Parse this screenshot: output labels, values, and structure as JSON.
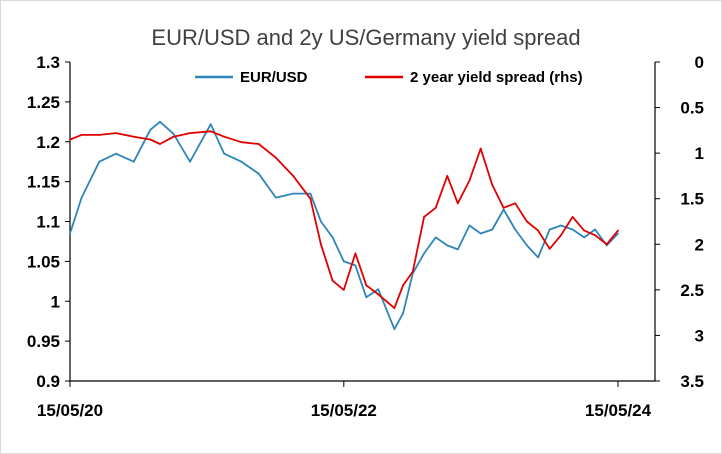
{
  "chart_data": {
    "type": "line",
    "title": "EUR/USD and 2y US/Germany yield spread",
    "xlabel": "",
    "ylabel": "",
    "x_tick_labels": [
      "15/05/20",
      "15/05/22",
      "15/05/24"
    ],
    "x_range": [
      "2020-05-15",
      "2024-05-15"
    ],
    "ylim": [
      0.9,
      1.3
    ],
    "y_ticks": [
      "1.3",
      "1.25",
      "1.2",
      "1.15",
      "1.1",
      "1.05",
      "1",
      "0.95",
      "0.9"
    ],
    "y2lim": [
      0,
      3.5
    ],
    "y2_inverted": true,
    "y2_ticks": [
      "0",
      "0.5",
      "1",
      "1.5",
      "2",
      "2.5",
      "3",
      "3.5"
    ],
    "grid": false,
    "legend_position": "top",
    "series": [
      {
        "name": "EUR/USD",
        "axis": "left",
        "color": "#2e86b8",
        "x": [
          "2020-05-15",
          "2020-06-15",
          "2020-08-01",
          "2020-09-15",
          "2020-11-01",
          "2020-12-15",
          "2021-01-10",
          "2021-02-15",
          "2021-03-31",
          "2021-05-25",
          "2021-06-30",
          "2021-08-15",
          "2021-09-30",
          "2021-11-15",
          "2021-12-31",
          "2022-02-15",
          "2022-03-15",
          "2022-04-15",
          "2022-05-15",
          "2022-06-15",
          "2022-07-14",
          "2022-08-15",
          "2022-09-27",
          "2022-10-20",
          "2022-11-15",
          "2022-12-15",
          "2023-01-15",
          "2023-02-15",
          "2023-03-15",
          "2023-04-15",
          "2023-05-15",
          "2023-06-15",
          "2023-07-15",
          "2023-08-15",
          "2023-09-15",
          "2023-10-15",
          "2023-11-15",
          "2023-12-15",
          "2024-01-15",
          "2024-02-15",
          "2024-03-15",
          "2024-04-15",
          "2024-05-15"
        ],
        "values": [
          1.085,
          1.13,
          1.175,
          1.185,
          1.175,
          1.215,
          1.225,
          1.21,
          1.175,
          1.222,
          1.185,
          1.175,
          1.16,
          1.13,
          1.135,
          1.135,
          1.1,
          1.08,
          1.05,
          1.045,
          1.005,
          1.015,
          0.965,
          0.985,
          1.035,
          1.06,
          1.08,
          1.07,
          1.065,
          1.095,
          1.085,
          1.09,
          1.115,
          1.09,
          1.07,
          1.055,
          1.09,
          1.095,
          1.09,
          1.08,
          1.09,
          1.07,
          1.085
        ]
      },
      {
        "name": "2 year yield spread (rhs)",
        "axis": "right",
        "color": "#e00000",
        "x": [
          "2020-05-15",
          "2020-06-15",
          "2020-08-01",
          "2020-09-15",
          "2020-11-01",
          "2020-12-15",
          "2021-01-10",
          "2021-02-15",
          "2021-03-31",
          "2021-05-25",
          "2021-06-30",
          "2021-08-15",
          "2021-09-30",
          "2021-11-15",
          "2021-12-31",
          "2022-02-15",
          "2022-03-15",
          "2022-04-15",
          "2022-05-15",
          "2022-06-15",
          "2022-07-14",
          "2022-08-15",
          "2022-09-27",
          "2022-10-20",
          "2022-11-15",
          "2022-12-15",
          "2023-01-15",
          "2023-02-15",
          "2023-03-15",
          "2023-04-15",
          "2023-05-15",
          "2023-06-15",
          "2023-07-15",
          "2023-08-15",
          "2023-09-15",
          "2023-10-15",
          "2023-11-15",
          "2023-12-15",
          "2024-01-15",
          "2024-02-15",
          "2024-03-15",
          "2024-04-15",
          "2024-05-15"
        ],
        "values": [
          0.85,
          0.8,
          0.8,
          0.78,
          0.82,
          0.85,
          0.9,
          0.82,
          0.78,
          0.76,
          0.82,
          0.88,
          0.9,
          1.05,
          1.25,
          1.5,
          2.0,
          2.4,
          2.5,
          2.1,
          2.45,
          2.55,
          2.7,
          2.45,
          2.3,
          1.7,
          1.6,
          1.25,
          1.55,
          1.3,
          0.95,
          1.35,
          1.6,
          1.55,
          1.75,
          1.85,
          2.05,
          1.9,
          1.7,
          1.85,
          1.9,
          2.0,
          1.85
        ]
      }
    ]
  }
}
